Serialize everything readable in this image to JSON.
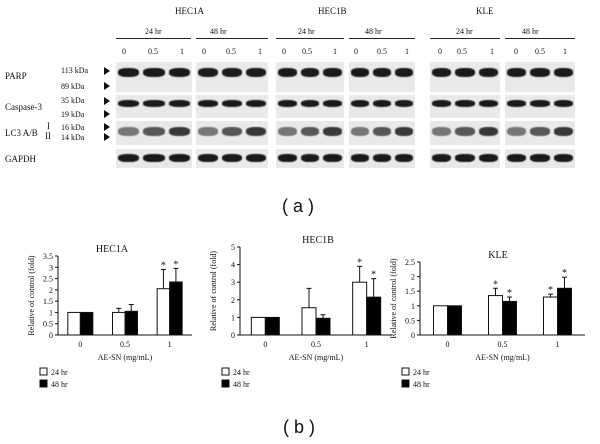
{
  "panel_a": {
    "cell_lines": [
      "HEC1A",
      "HEC1B",
      "KLE"
    ],
    "timepoints": [
      "24 hr",
      "48 hr"
    ],
    "doses": [
      "0",
      "0.5",
      "1"
    ],
    "row_labels": {
      "parp": "PARP",
      "caspase3": "Caspase-3",
      "lc3": "LC3 A/B",
      "lc3_i": "I",
      "lc3_ii": "II",
      "gapdh": "GAPDH"
    },
    "markers": [
      "113 kDa",
      "89 kDa",
      "35 kDa",
      "19 kDa",
      "16 kDa",
      "14 kDa"
    ],
    "caption": "( a )"
  },
  "chart_data": [
    {
      "type": "bar",
      "title": "HEC1A",
      "categories": [
        "0",
        "0.5",
        "1"
      ],
      "series": [
        {
          "name": "24 hr",
          "values": [
            1.0,
            1.0,
            2.05
          ],
          "errors": [
            0,
            0.18,
            0.85
          ],
          "significant": [
            false,
            false,
            true
          ]
        },
        {
          "name": "48 hr",
          "values": [
            1.0,
            1.05,
            2.35
          ],
          "errors": [
            0,
            0.3,
            0.6
          ],
          "significant": [
            false,
            false,
            true
          ]
        }
      ],
      "xlabel": "AE-SN (mg/mL)",
      "ylabel": "Relative of control (fold)",
      "ylim": [
        0,
        3.5
      ],
      "yticks": [
        "0",
        "0.5",
        "1",
        "1.5",
        "2",
        "2.5",
        "3",
        "3.5"
      ]
    },
    {
      "type": "bar",
      "title": "HEC1B",
      "categories": [
        "0",
        "0.5",
        "1"
      ],
      "series": [
        {
          "name": "24 hr",
          "values": [
            1.0,
            1.55,
            3.0
          ],
          "errors": [
            0,
            1.1,
            0.9
          ],
          "significant": [
            false,
            false,
            true
          ]
        },
        {
          "name": "48 hr",
          "values": [
            1.0,
            0.95,
            2.15
          ],
          "errors": [
            0,
            0.2,
            1.05
          ],
          "significant": [
            false,
            false,
            true
          ]
        }
      ],
      "xlabel": "AE-SN (mg/mL)",
      "ylabel": "Relative of control (fold)",
      "ylim": [
        0,
        5
      ],
      "yticks": [
        "0",
        "1",
        "2",
        "3",
        "4",
        "5"
      ]
    },
    {
      "type": "bar",
      "title": "KLE",
      "categories": [
        "0",
        "0.5",
        "1"
      ],
      "series": [
        {
          "name": "24 hr",
          "values": [
            1.0,
            1.35,
            1.3
          ],
          "errors": [
            0,
            0.25,
            0.1
          ],
          "significant": [
            false,
            true,
            true
          ]
        },
        {
          "name": "48 hr",
          "values": [
            1.0,
            1.15,
            1.6
          ],
          "errors": [
            0,
            0.15,
            0.38
          ],
          "significant": [
            false,
            true,
            true
          ]
        }
      ],
      "xlabel": "AE-SN (mg/mL)",
      "ylabel": "Relative of control (fold)",
      "ylim": [
        0,
        2.5
      ],
      "yticks": [
        "0",
        "0.5",
        "1",
        "1.5",
        "2",
        "2.5"
      ]
    }
  ],
  "significance_mark": "*",
  "caption_b": "( b )"
}
